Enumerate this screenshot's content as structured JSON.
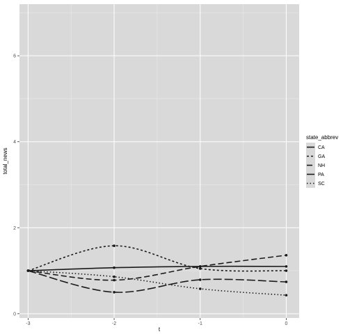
{
  "chart_data": {
    "type": "line",
    "xlabel": "t",
    "ylabel": "total_news",
    "xlim": [
      -3.1,
      0.15
    ],
    "ylim": [
      -0.1,
      7.2
    ],
    "x_ticks": [
      -3,
      -2,
      -1,
      0
    ],
    "y_ticks": [
      0,
      2,
      4,
      6
    ],
    "x_tick_labels": [
      "-3",
      "-2",
      "-1",
      "0"
    ],
    "y_tick_labels": [
      "0",
      "2",
      "4",
      "6"
    ],
    "grid": true,
    "legend": {
      "title": "state_abbrev",
      "position": "right"
    },
    "x": [
      -3,
      -2,
      -1,
      0
    ],
    "series": [
      {
        "name": "CA",
        "values": [
          1.0,
          1.07,
          1.1,
          1.1
        ],
        "dash": "solid"
      },
      {
        "name": "GA",
        "values": [
          1.0,
          1.58,
          1.05,
          1.0
        ],
        "dash": "3,3"
      },
      {
        "name": "NH",
        "values": [
          1.0,
          0.78,
          1.1,
          1.36
        ],
        "dash": "8,4"
      },
      {
        "name": "PA",
        "values": [
          1.0,
          0.5,
          0.79,
          0.74
        ],
        "dash": "12,4"
      },
      {
        "name": "SC",
        "values": [
          1.0,
          0.86,
          0.58,
          0.43
        ],
        "dash": "1.5,3"
      }
    ],
    "colors": {
      "panel": "#d9d9d9",
      "grid_major": "#ffffff",
      "line": "#1a1a1a"
    }
  }
}
